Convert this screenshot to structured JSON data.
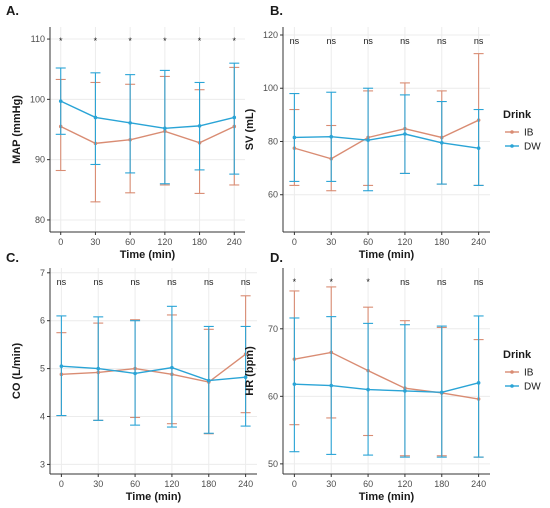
{
  "chart_data": [
    {
      "id": "A",
      "type": "line",
      "panel_label": "A.",
      "xlabel": "Time (min)",
      "ylabel": "MAP (mmHg)",
      "categories": [
        "0",
        "30",
        "60",
        "120",
        "180",
        "240"
      ],
      "ylim": [
        78,
        112
      ],
      "yticks": [
        "80",
        "90",
        "100",
        "110"
      ],
      "significance": [
        "*",
        "*",
        "*",
        "*",
        "*",
        "*"
      ],
      "grid": true,
      "series": [
        {
          "name": "IB",
          "color": "#d98c73",
          "values": [
            95.5,
            92.7,
            93.3,
            94.7,
            92.8,
            95.5
          ],
          "lower": [
            88.2,
            83.0,
            84.5,
            85.8,
            84.4,
            85.8
          ],
          "upper": [
            103.3,
            102.8,
            102.5,
            103.8,
            101.6,
            105.3
          ]
        },
        {
          "name": "DW",
          "color": "#2aa4d6",
          "values": [
            99.7,
            97.0,
            96.1,
            95.2,
            95.6,
            97.0
          ],
          "lower": [
            94.2,
            89.2,
            87.8,
            86.0,
            88.3,
            87.6
          ],
          "upper": [
            105.2,
            104.4,
            104.1,
            104.8,
            102.8,
            106.0
          ]
        }
      ]
    },
    {
      "id": "B",
      "type": "line",
      "panel_label": "B.",
      "xlabel": "Time (min)",
      "ylabel": "SV (mL)",
      "categories": [
        "0",
        "30",
        "60",
        "120",
        "180",
        "240"
      ],
      "ylim": [
        46,
        123
      ],
      "yticks": [
        "60",
        "80",
        "100",
        "120"
      ],
      "significance": [
        "ns",
        "ns",
        "ns",
        "ns",
        "ns",
        "ns"
      ],
      "grid": true,
      "series": [
        {
          "name": "IB",
          "color": "#d98c73",
          "values": [
            77.5,
            73.5,
            81.5,
            84.8,
            81.5,
            88.0
          ],
          "lower": [
            63.5,
            61.5,
            63.5,
            68.0,
            64.0,
            63.5
          ],
          "upper": [
            92.0,
            86.0,
            99.0,
            102.0,
            99.0,
            113.0
          ]
        },
        {
          "name": "DW",
          "color": "#2aa4d6",
          "values": [
            81.5,
            81.8,
            80.5,
            82.8,
            79.5,
            77.5
          ],
          "lower": [
            65.0,
            65.0,
            61.5,
            68.0,
            64.0,
            63.5
          ],
          "upper": [
            98.0,
            98.5,
            100.0,
            97.5,
            95.0,
            92.0
          ]
        }
      ]
    },
    {
      "id": "C",
      "type": "line",
      "panel_label": "C.",
      "xlabel": "Time (min)",
      "ylabel": "CO (L/min)",
      "categories": [
        "0",
        "30",
        "60",
        "120",
        "180",
        "240"
      ],
      "ylim": [
        2.8,
        7.1
      ],
      "yticks": [
        "3",
        "4",
        "5",
        "6",
        "7"
      ],
      "significance": [
        "ns",
        "ns",
        "ns",
        "ns",
        "ns",
        "ns"
      ],
      "grid": true,
      "series": [
        {
          "name": "IB",
          "color": "#d98c73",
          "values": [
            4.88,
            4.92,
            5.0,
            4.88,
            4.72,
            5.3
          ],
          "lower": [
            4.02,
            3.92,
            3.98,
            3.85,
            3.64,
            4.08
          ],
          "upper": [
            5.75,
            5.95,
            6.02,
            6.12,
            5.82,
            6.52
          ]
        },
        {
          "name": "DW",
          "color": "#2aa4d6",
          "values": [
            5.05,
            5.0,
            4.9,
            5.02,
            4.75,
            4.82
          ],
          "lower": [
            4.02,
            3.92,
            3.82,
            3.78,
            3.65,
            3.8
          ],
          "upper": [
            6.1,
            6.08,
            6.0,
            6.3,
            5.88,
            5.88
          ]
        }
      ]
    },
    {
      "id": "D",
      "type": "line",
      "panel_label": "D.",
      "xlabel": "Time (min)",
      "ylabel": "HR (bpm)",
      "categories": [
        "0",
        "30",
        "60",
        "120",
        "180",
        "240"
      ],
      "ylim": [
        48.5,
        79
      ],
      "yticks": [
        "50",
        "60",
        "70"
      ],
      "significance": [
        "*",
        "*",
        "*",
        "ns",
        "ns",
        "ns"
      ],
      "grid": true,
      "series": [
        {
          "name": "IB",
          "color": "#d98c73",
          "values": [
            65.5,
            66.5,
            63.8,
            61.2,
            60.5,
            59.6
          ],
          "lower": [
            55.8,
            56.8,
            54.2,
            51.2,
            51.2,
            51.0
          ],
          "upper": [
            75.6,
            76.2,
            73.2,
            71.2,
            70.2,
            68.4
          ]
        },
        {
          "name": "DW",
          "color": "#2aa4d6",
          "values": [
            61.8,
            61.6,
            61.0,
            60.8,
            60.6,
            62.0
          ],
          "lower": [
            51.8,
            51.4,
            51.3,
            51.0,
            51.0,
            51.0
          ],
          "upper": [
            71.6,
            71.8,
            70.8,
            70.6,
            70.4,
            71.9
          ]
        }
      ]
    }
  ],
  "legends": [
    {
      "panels": "AB",
      "title": "Drink",
      "items": [
        {
          "label": "IB",
          "color": "#d98c73"
        },
        {
          "label": "DW",
          "color": "#2aa4d6"
        }
      ]
    },
    {
      "panels": "CD",
      "title": "Drink",
      "items": [
        {
          "label": "IB",
          "color": "#d98c73"
        },
        {
          "label": "DW",
          "color": "#2aa4d6"
        }
      ]
    }
  ]
}
